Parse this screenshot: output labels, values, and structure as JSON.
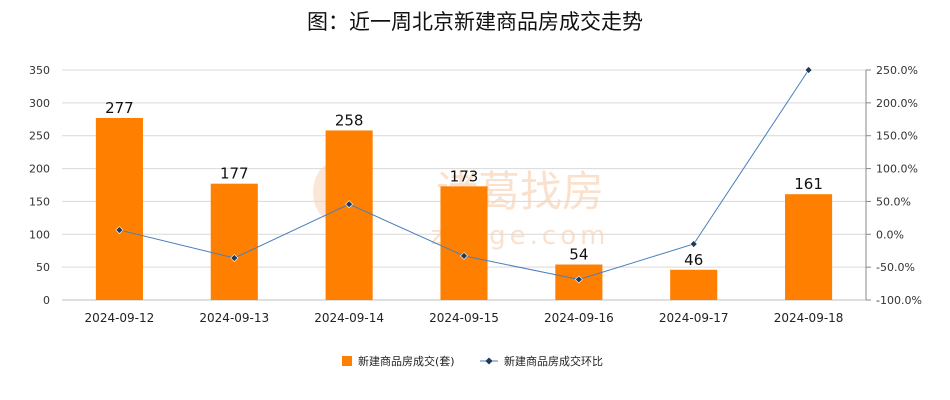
{
  "chart_data": {
    "type": "bar",
    "title": "图：近一周北京新建商品房成交走势",
    "categories": [
      "2024-09-12",
      "2024-09-13",
      "2024-09-14",
      "2024-09-15",
      "2024-09-16",
      "2024-09-17",
      "2024-09-18"
    ],
    "series": [
      {
        "name": "新建商品房成交(套)",
        "type": "bar",
        "axis": "left",
        "values": [
          277,
          177,
          258,
          173,
          54,
          46,
          161
        ]
      },
      {
        "name": "新建商品房成交环比",
        "type": "line",
        "axis": "right",
        "values": [
          6.5,
          -36.1,
          45.8,
          -32.9,
          -68.8,
          -14.8,
          250.0
        ]
      }
    ],
    "y_left": {
      "ylim": [
        0,
        350
      ],
      "ticks": [
        "0",
        "50",
        "100",
        "150",
        "200",
        "250",
        "300",
        "350"
      ]
    },
    "y_right": {
      "ylim": [
        -100,
        250
      ],
      "ticks": [
        "-100.0%",
        "-50.0%",
        "0.0%",
        "50.0%",
        "100.0%",
        "150.0%",
        "200.0%",
        "250.0%"
      ]
    },
    "grid": true,
    "legend": "bottom",
    "colors": {
      "bar": "#ff8000",
      "line": "#4a7ebb",
      "grid": "#d9d9d9"
    }
  },
  "watermark": {
    "text": "诸葛找房",
    "subtext": "zhuge.com"
  }
}
